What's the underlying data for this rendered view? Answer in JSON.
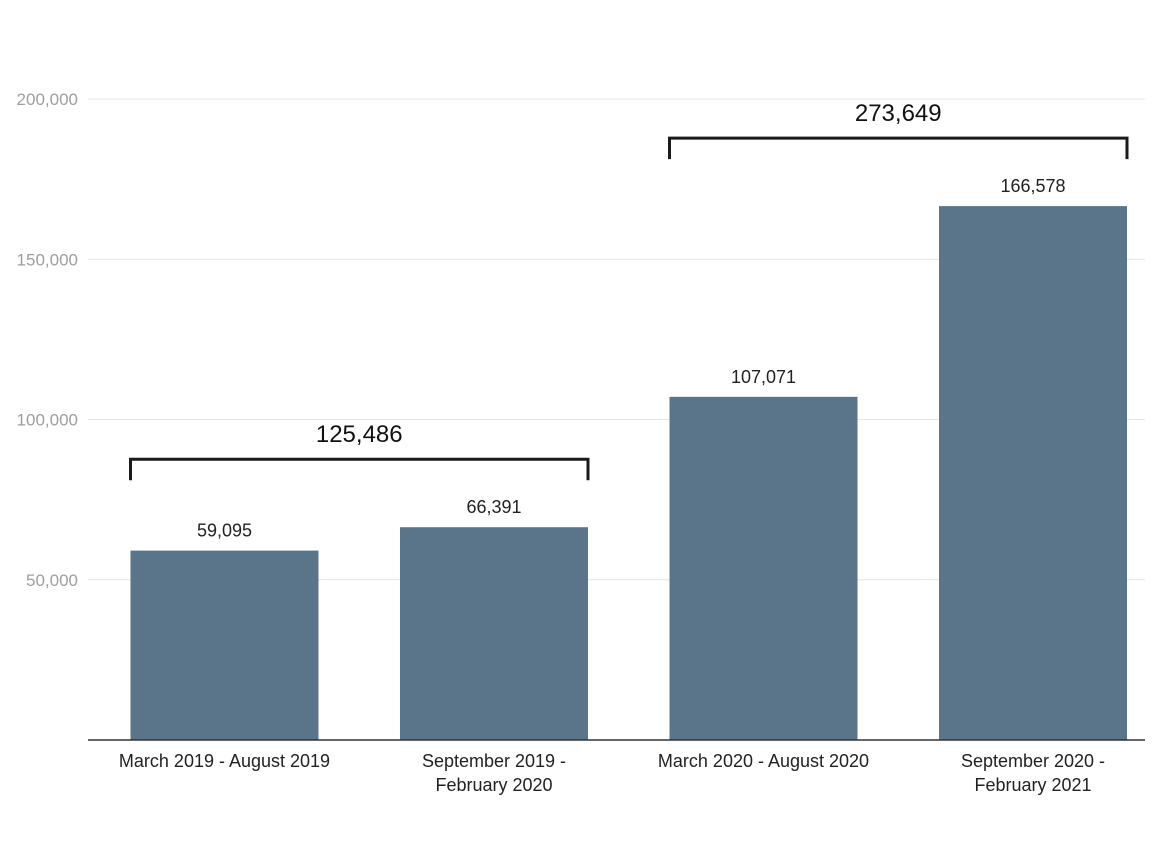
{
  "chart_data": {
    "type": "bar",
    "categories": [
      [
        "March 2019 - August 2019"
      ],
      [
        "September 2019 -",
        "February 2020"
      ],
      [
        "March 2020 - August 2020"
      ],
      [
        "September 2020 -",
        "February 2021"
      ]
    ],
    "values": [
      59095,
      66391,
      107071,
      166578
    ],
    "data_labels": [
      "59,095",
      "66,391",
      "107,071",
      "166,578"
    ],
    "ylim": [
      0,
      200000
    ],
    "yticks": [
      {
        "value": 50000,
        "label": "50,000"
      },
      {
        "value": 100000,
        "label": "100,000"
      },
      {
        "value": 150000,
        "label": "150,000"
      },
      {
        "value": 200000,
        "label": "200,000"
      }
    ],
    "grid": true,
    "bar_color": "#5a7489",
    "group_totals": [
      {
        "label": "125,486",
        "from": 0,
        "to": 1
      },
      {
        "label": "273,649",
        "from": 2,
        "to": 3
      }
    ],
    "title": "",
    "xlabel": "",
    "ylabel": ""
  }
}
